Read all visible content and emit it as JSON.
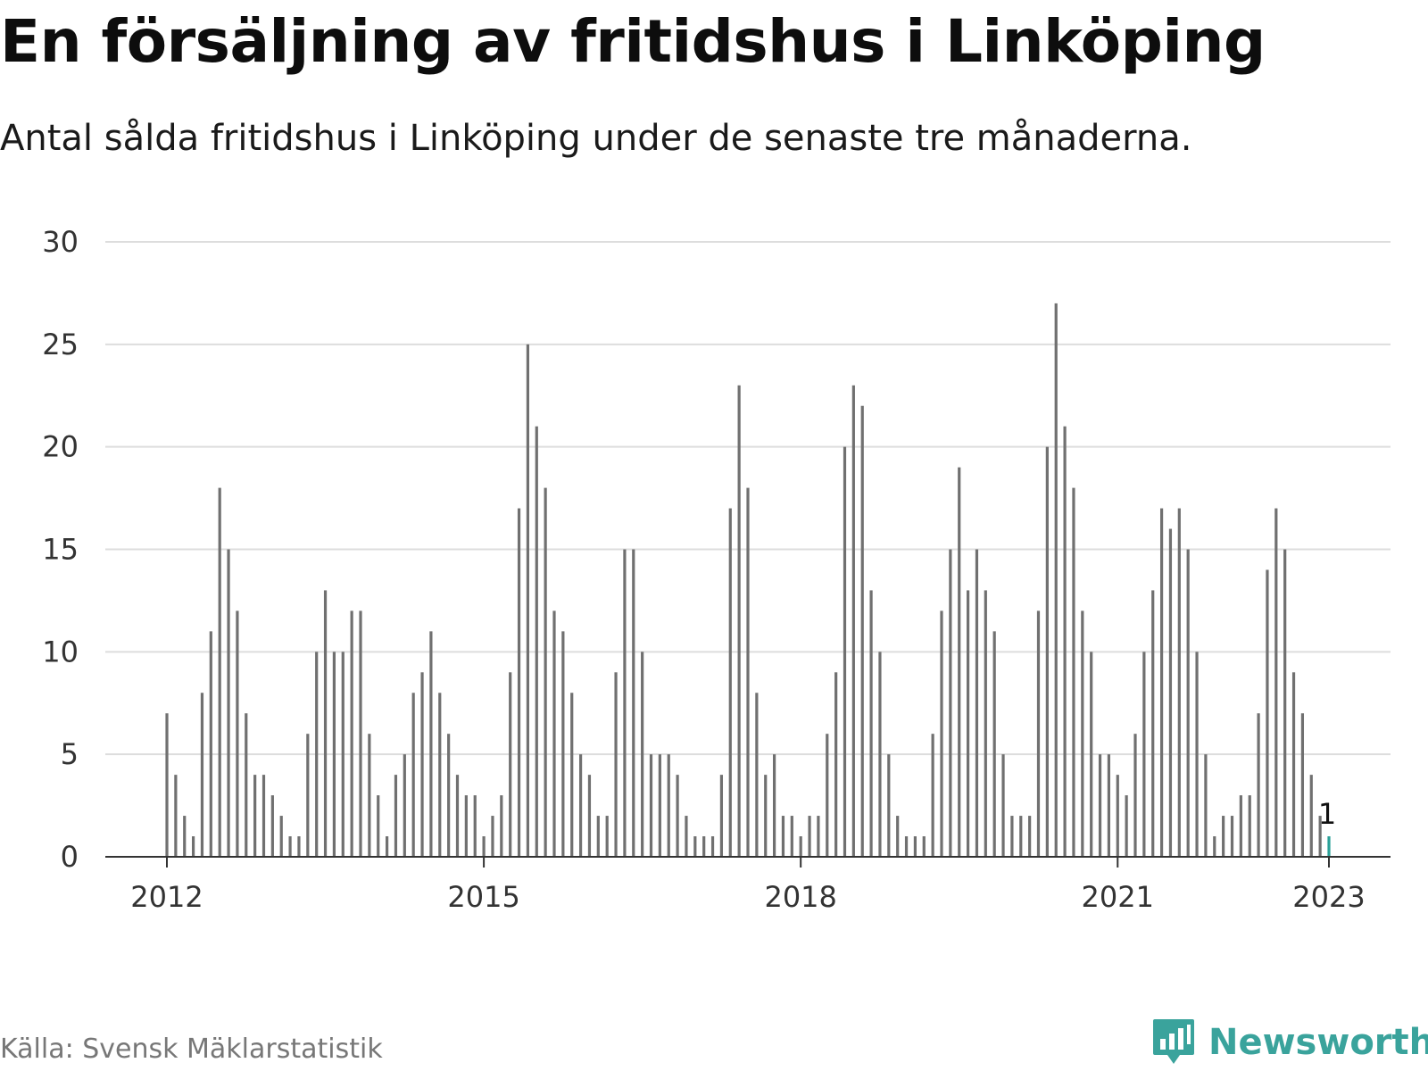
{
  "title": "En försäljning av fritidshus i Linköping",
  "subtitle": "Antal sålda fritidshus i Linköping under de senaste tre månaderna.",
  "source": "Källa: Svensk Mäklarstatistik",
  "brand": {
    "name": "Newsworthy",
    "logo_icon": "chart-speech-bubble-icon"
  },
  "colors": {
    "bar": "#707070",
    "highlight": "#2aa198",
    "grid": "#dddddd",
    "axis": "#333333",
    "brand": "#3aa39c"
  },
  "chart_data": {
    "type": "bar",
    "x_start": "2012-01",
    "interval": "month",
    "values": [
      7,
      4,
      2,
      1,
      8,
      11,
      18,
      15,
      12,
      7,
      4,
      4,
      3,
      2,
      1,
      1,
      6,
      10,
      13,
      10,
      10,
      12,
      12,
      6,
      3,
      1,
      4,
      5,
      8,
      9,
      11,
      8,
      6,
      4,
      3,
      3,
      1,
      2,
      3,
      9,
      17,
      25,
      21,
      18,
      12,
      11,
      8,
      5,
      4,
      2,
      2,
      9,
      15,
      15,
      10,
      5,
      5,
      5,
      4,
      2,
      1,
      1,
      1,
      4,
      17,
      23,
      18,
      8,
      4,
      5,
      2,
      2,
      1,
      2,
      2,
      6,
      9,
      20,
      23,
      22,
      13,
      10,
      5,
      2,
      1,
      1,
      1,
      6,
      12,
      15,
      19,
      13,
      15,
      13,
      11,
      5,
      2,
      2,
      2,
      12,
      20,
      27,
      21,
      18,
      12,
      10,
      5,
      5,
      4,
      3,
      6,
      10,
      13,
      17,
      16,
      17,
      15,
      10,
      5,
      1,
      2,
      2,
      3,
      3,
      7,
      14,
      17,
      15,
      9,
      7,
      4,
      2,
      1
    ],
    "highlight_last": true,
    "annotation": "1",
    "x_ticks": [
      {
        "label": "2012",
        "index": 0
      },
      {
        "label": "2015",
        "index": 36
      },
      {
        "label": "2018",
        "index": 72
      },
      {
        "label": "2021",
        "index": 108
      },
      {
        "label": "2023",
        "index": 132
      }
    ],
    "y_ticks": [
      "0",
      "5",
      "10",
      "15",
      "20",
      "25",
      "30"
    ],
    "ylim": [
      0,
      30
    ],
    "grid": true,
    "xlabel": "",
    "ylabel": ""
  }
}
